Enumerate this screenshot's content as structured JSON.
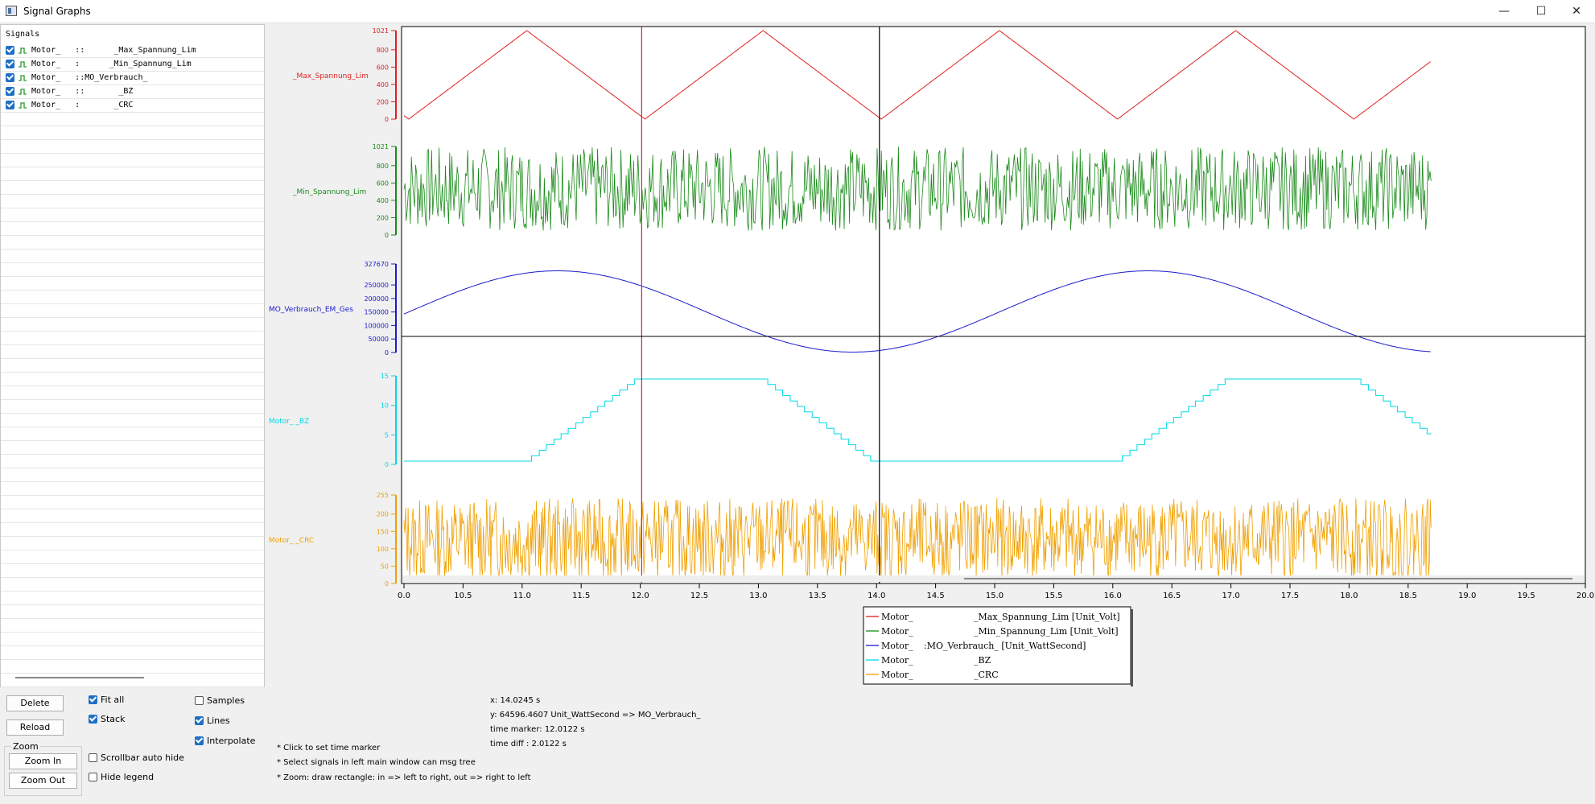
{
  "window": {
    "title": "Signal Graphs"
  },
  "signals_panel": {
    "header": "Signals",
    "items": [
      {
        "label": "Motor_   ::      _Max_Spannung_Lim",
        "color": "#2d9a2d",
        "checked": true
      },
      {
        "label": "Motor_   :      _Min_Spannung_Lim",
        "color": "#2d9a2d",
        "checked": true
      },
      {
        "label": "Motor_   ::MO_Verbrauch_      ",
        "color": "#2d9a2d",
        "checked": true
      },
      {
        "label": "Motor_   ::       _BZ",
        "color": "#2d9a2d",
        "checked": true
      },
      {
        "label": "Motor_   :       _CRC",
        "color": "#2d9a2d",
        "checked": true
      }
    ]
  },
  "plot": {
    "panels": [
      {
        "label": "_Max_Spannung_Lim",
        "color": "#e02020",
        "ticks": [
          "1021",
          "800",
          "600",
          "400",
          "200",
          "0"
        ]
      },
      {
        "label": "_Min_Spannung_Lim",
        "color": "#1a8a1a",
        "ticks": [
          "1021",
          "800",
          "600",
          "400",
          "200",
          "0"
        ]
      },
      {
        "label": "MO_Verbrauch_EM_Ges",
        "color": "#1a1acc",
        "ticks": [
          "327670",
          "250000",
          "200000",
          "150000",
          "100000",
          "50000",
          "0"
        ]
      },
      {
        "label": "Motor_    _BZ",
        "color": "#00d8e8",
        "ticks": [
          "15",
          "10",
          "5",
          "0"
        ]
      },
      {
        "label": "Motor_    _CRC",
        "color": "#f0a000",
        "ticks": [
          "255",
          "200",
          "150",
          "100",
          "50",
          "0"
        ]
      }
    ],
    "x_ticks": [
      "0.0",
      "10.5",
      "11.0",
      "11.5",
      "12.0",
      "12.5",
      "13.0",
      "13.5",
      "14.0",
      "14.5",
      "15.0",
      "15.5",
      "16.0",
      "16.5",
      "17.0",
      "17.5",
      "18.0",
      "18.5",
      "19.0",
      "19.5",
      "20.0"
    ],
    "time_marker_red": 12.0122,
    "time_marker_black": 14.0245
  },
  "chart_data": {
    "type": "line",
    "x_range": [
      10.0,
      20.0
    ],
    "series": [
      {
        "name": "Motor_ _Max_Spannung_Lim [Unit_Volt]",
        "shape": "triangle wave 0-1021, period 2.0",
        "ylim": [
          0,
          1021
        ]
      },
      {
        "name": "Motor_ _Min_Spannung_Lim [Unit_Volt]",
        "shape": "random noise 0-1021",
        "ylim": [
          0,
          1021
        ]
      },
      {
        "name": "Motor_ :MO_Verbrauch_ [Unit_WattSecond]",
        "shape": "sine wave, max at 11.3 and 16.3, min at 13.8",
        "ylim": [
          0,
          327670
        ]
      },
      {
        "name": "Motor_ _BZ",
        "shape": "staircase 0-15",
        "ylim": [
          0,
          15
        ]
      },
      {
        "name": "Motor_ _CRC",
        "shape": "random noise 0-255",
        "ylim": [
          0,
          255
        ]
      }
    ],
    "data_end_x": 18.7
  },
  "legend": {
    "items": [
      {
        "prefix": "Motor_",
        "suffix": "_Max_Spannung_Lim [Unit_Volt]",
        "color": "#e02020"
      },
      {
        "prefix": "Motor_",
        "suffix": "_Min_Spannung_Lim [Unit_Volt]",
        "color": "#1a8a1a"
      },
      {
        "prefix": "Motor_",
        "suffix": ":MO_Verbrauch_           [Unit_WattSecond]",
        "color": "#1a1acc"
      },
      {
        "prefix": "Motor_",
        "suffix": "_BZ",
        "color": "#00d8e8"
      },
      {
        "prefix": "Motor_",
        "suffix": "_CRC",
        "color": "#f0a000"
      }
    ]
  },
  "controls": {
    "delete": "Delete",
    "reload": "Reload",
    "zoom_group": "Zoom",
    "zoom_in": "Zoom In",
    "zoom_out": "Zoom Out",
    "fit_all": "Fit all",
    "stack": "Stack",
    "scrollbar_auto_hide": "Scrollbar auto hide",
    "hide_legend": "Hide legend",
    "samples": "Samples",
    "lines": "Lines",
    "interpolate": "Interpolate"
  },
  "help": [
    "* Click to set time marker",
    "* Select signals in left main window can msg tree",
    "* Zoom: draw rectangle: in => left to right, out => right to left"
  ],
  "info": {
    "x": "x: 14.0245 s",
    "y": "y: 64596.4607 Unit_WattSecond => MO_Verbrauch_",
    "time_marker": "time marker: 12.0122 s",
    "time_diff": "time diff      : 2.0122 s"
  }
}
